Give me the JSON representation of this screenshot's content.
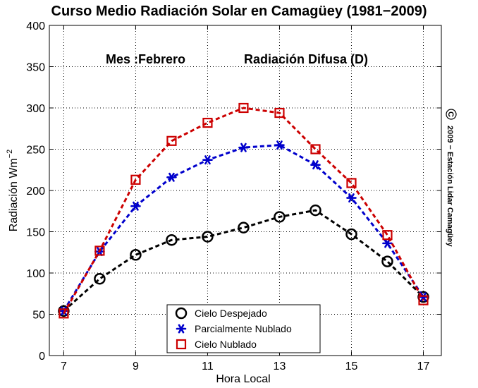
{
  "chart_data": {
    "type": "line",
    "title": "Curso Medio Radiación Solar en Camagüey (1981−2009)",
    "annotations": {
      "month_label": "Mes :Febrero",
      "variable_label": "Radiación Difusa (D)",
      "copyright_symbol": "C",
      "copyright_text": "2009 − Estación Lidar Camagüey"
    },
    "xlabel": "Hora Local",
    "ylabel": "Radiación Wm",
    "ylabel_exponent": "−2",
    "xlim": [
      6.6,
      17.5
    ],
    "ylim": [
      0,
      400
    ],
    "x_ticks": [
      7,
      9,
      11,
      13,
      15,
      17
    ],
    "y_ticks": [
      0,
      50,
      100,
      150,
      200,
      250,
      300,
      350,
      400
    ],
    "grid": true,
    "legend_position": "bottom-center",
    "x": [
      7,
      8,
      9,
      10,
      11,
      12,
      13,
      14,
      15,
      16,
      17
    ],
    "series": [
      {
        "name": "Cielo Despejado",
        "color": "#000000",
        "marker": "circle",
        "values": [
          54,
          93,
          122,
          140,
          144,
          155,
          168,
          176,
          147,
          114,
          71
        ]
      },
      {
        "name": "Parcialmente Nublado",
        "color": "#0000cc",
        "marker": "asterisk",
        "values": [
          54,
          126,
          181,
          216,
          237,
          252,
          255,
          231,
          191,
          136,
          71
        ]
      },
      {
        "name": "Cielo Nublado",
        "color": "#cc0000",
        "marker": "square",
        "values": [
          51,
          127,
          213,
          260,
          282,
          300,
          294,
          250,
          209,
          146,
          67
        ]
      }
    ]
  }
}
